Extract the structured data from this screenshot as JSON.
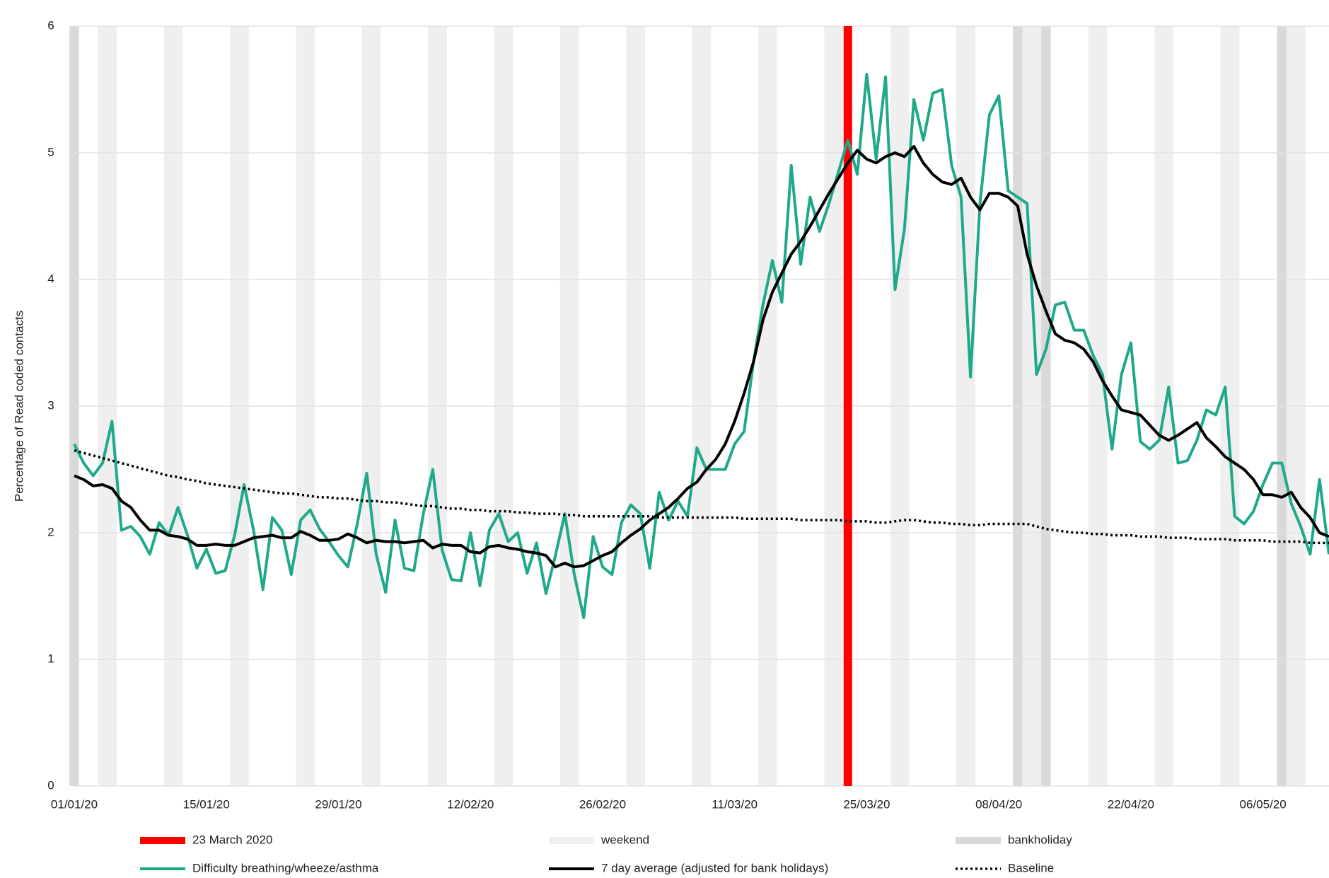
{
  "chart_data": {
    "type": "line",
    "y_label": "Percentage of Read coded contacts",
    "categories": [
      "01/01/20",
      null,
      null,
      null,
      null,
      null,
      null,
      null,
      null,
      null,
      null,
      null,
      null,
      null,
      "15/01/20",
      null,
      null,
      null,
      null,
      null,
      null,
      null,
      null,
      null,
      null,
      null,
      null,
      null,
      "29/01/20",
      null,
      null,
      null,
      null,
      null,
      null,
      null,
      null,
      null,
      null,
      null,
      null,
      null,
      "12/02/20",
      null,
      null,
      null,
      null,
      null,
      null,
      null,
      null,
      null,
      null,
      null,
      null,
      null,
      "26/02/20",
      null,
      null,
      null,
      null,
      null,
      null,
      null,
      null,
      null,
      null,
      null,
      null,
      null,
      "11/03/20",
      null,
      null,
      null,
      null,
      null,
      null,
      null,
      null,
      null,
      null,
      null,
      null,
      null,
      "25/03/20",
      null,
      null,
      null,
      null,
      null,
      null,
      null,
      null,
      null,
      null,
      null,
      null,
      null,
      "08/04/20",
      null,
      null,
      null,
      null,
      null,
      null,
      null,
      null,
      null,
      null,
      null,
      null,
      null,
      "22/04/20",
      null,
      null,
      null,
      null,
      null,
      null,
      null,
      null,
      null,
      null,
      null,
      null,
      null,
      "06/05/20",
      null,
      null,
      null,
      null,
      null,
      null,
      null
    ],
    "ylim": [
      0,
      6
    ],
    "yticks": [
      0,
      1,
      2,
      3,
      4,
      5,
      6
    ],
    "grid": true,
    "series": [
      {
        "name": "Difficulty breathing/wheeze/asthma",
        "color": "#1fa98a",
        "style": "solid",
        "values": [
          2.7,
          2.55,
          2.45,
          2.55,
          2.88,
          2.02,
          2.05,
          1.97,
          1.83,
          2.08,
          1.98,
          2.2,
          1.98,
          1.72,
          1.87,
          1.68,
          1.7,
          1.98,
          2.38,
          2.02,
          1.55,
          2.12,
          2.02,
          1.67,
          2.1,
          2.18,
          2.03,
          1.93,
          1.82,
          1.73,
          2.07,
          2.47,
          1.83,
          1.53,
          2.1,
          1.72,
          1.7,
          2.15,
          2.5,
          1.86,
          1.63,
          1.62,
          2.0,
          1.58,
          2.02,
          2.15,
          1.93,
          2.0,
          1.68,
          1.92,
          1.52,
          1.82,
          2.15,
          1.67,
          1.33,
          1.97,
          1.73,
          1.67,
          2.08,
          2.22,
          2.15,
          1.72,
          2.32,
          2.1,
          2.25,
          2.13,
          2.67,
          2.5,
          2.5,
          2.5,
          2.7,
          2.8,
          3.35,
          3.8,
          4.15,
          3.82,
          4.9,
          4.12,
          4.65,
          4.38,
          4.6,
          4.85,
          5.1,
          4.83,
          5.62,
          4.95,
          5.6,
          3.92,
          4.4,
          5.42,
          5.1,
          5.47,
          5.5,
          4.9,
          4.65,
          3.23,
          4.6,
          5.3,
          5.45,
          4.7,
          4.65,
          4.6,
          3.25,
          3.45,
          3.8,
          3.82,
          3.6,
          3.6,
          3.4,
          3.25,
          2.66,
          3.25,
          3.5,
          2.72,
          2.66,
          2.73,
          3.15,
          2.55,
          2.57,
          2.73,
          2.97,
          2.93,
          3.15,
          2.13,
          2.07,
          2.17,
          2.38,
          2.55,
          2.55,
          2.23,
          2.05,
          1.83,
          2.42,
          1.83
        ]
      },
      {
        "name": "7 day average (adjusted for bank holidays)",
        "color": "#000000",
        "style": "solid",
        "values": [
          2.45,
          2.42,
          2.37,
          2.38,
          2.35,
          2.25,
          2.2,
          2.1,
          2.02,
          2.02,
          1.98,
          1.97,
          1.95,
          1.9,
          1.9,
          1.91,
          1.9,
          1.9,
          1.93,
          1.96,
          1.97,
          1.98,
          1.96,
          1.96,
          2.01,
          1.98,
          1.94,
          1.94,
          1.95,
          1.99,
          1.96,
          1.92,
          1.94,
          1.93,
          1.93,
          1.92,
          1.93,
          1.94,
          1.88,
          1.91,
          1.9,
          1.9,
          1.85,
          1.84,
          1.89,
          1.9,
          1.88,
          1.87,
          1.85,
          1.84,
          1.82,
          1.73,
          1.76,
          1.73,
          1.74,
          1.78,
          1.82,
          1.85,
          1.92,
          1.98,
          2.03,
          2.1,
          2.15,
          2.2,
          2.27,
          2.35,
          2.4,
          2.5,
          2.58,
          2.7,
          2.88,
          3.1,
          3.35,
          3.68,
          3.9,
          4.05,
          4.2,
          4.3,
          4.42,
          4.55,
          4.68,
          4.8,
          4.92,
          5.02,
          4.95,
          4.92,
          4.97,
          5.0,
          4.97,
          5.05,
          4.92,
          4.83,
          4.77,
          4.75,
          4.8,
          4.65,
          4.55,
          4.68,
          4.68,
          4.65,
          4.58,
          4.2,
          3.95,
          3.75,
          3.57,
          3.52,
          3.5,
          3.45,
          3.35,
          3.2,
          3.08,
          2.97,
          2.95,
          2.93,
          2.85,
          2.77,
          2.73,
          2.77,
          2.82,
          2.87,
          2.75,
          2.68,
          2.6,
          2.55,
          2.5,
          2.42,
          2.3,
          2.3,
          2.28,
          2.32,
          2.2,
          2.12,
          2.0,
          1.97
        ]
      },
      {
        "name": "Baseline",
        "color": "#000000",
        "style": "dotted",
        "values": [
          2.65,
          2.63,
          2.61,
          2.59,
          2.57,
          2.55,
          2.53,
          2.51,
          2.49,
          2.47,
          2.45,
          2.44,
          2.42,
          2.41,
          2.39,
          2.38,
          2.37,
          2.36,
          2.35,
          2.34,
          2.33,
          2.32,
          2.31,
          2.31,
          2.3,
          2.29,
          2.28,
          2.28,
          2.27,
          2.27,
          2.26,
          2.25,
          2.25,
          2.24,
          2.24,
          2.23,
          2.22,
          2.21,
          2.21,
          2.2,
          2.19,
          2.19,
          2.18,
          2.18,
          2.17,
          2.17,
          2.17,
          2.16,
          2.16,
          2.15,
          2.15,
          2.15,
          2.14,
          2.14,
          2.13,
          2.13,
          2.13,
          2.13,
          2.13,
          2.13,
          2.13,
          2.13,
          2.12,
          2.12,
          2.12,
          2.12,
          2.12,
          2.12,
          2.12,
          2.12,
          2.12,
          2.11,
          2.11,
          2.11,
          2.11,
          2.11,
          2.11,
          2.1,
          2.1,
          2.1,
          2.1,
          2.1,
          2.09,
          2.09,
          2.09,
          2.08,
          2.08,
          2.09,
          2.1,
          2.1,
          2.09,
          2.08,
          2.08,
          2.07,
          2.07,
          2.06,
          2.06,
          2.07,
          2.07,
          2.07,
          2.07,
          2.07,
          2.05,
          2.03,
          2.02,
          2.01,
          2.0,
          2.0,
          1.99,
          1.99,
          1.98,
          1.98,
          1.98,
          1.97,
          1.97,
          1.97,
          1.96,
          1.96,
          1.96,
          1.95,
          1.95,
          1.95,
          1.95,
          1.94,
          1.94,
          1.94,
          1.94,
          1.93,
          1.93,
          1.93,
          1.93,
          1.92,
          1.92,
          1.92
        ]
      }
    ],
    "marker": {
      "name": "23 March 2020",
      "color": "#ff0000",
      "index": 82
    },
    "weekend": {
      "name": "weekend",
      "color": "#efefef"
    },
    "bankholiday": {
      "name": "bankholiday",
      "color": "#d9d9d9",
      "indices": [
        0,
        100,
        103,
        128
      ]
    }
  }
}
